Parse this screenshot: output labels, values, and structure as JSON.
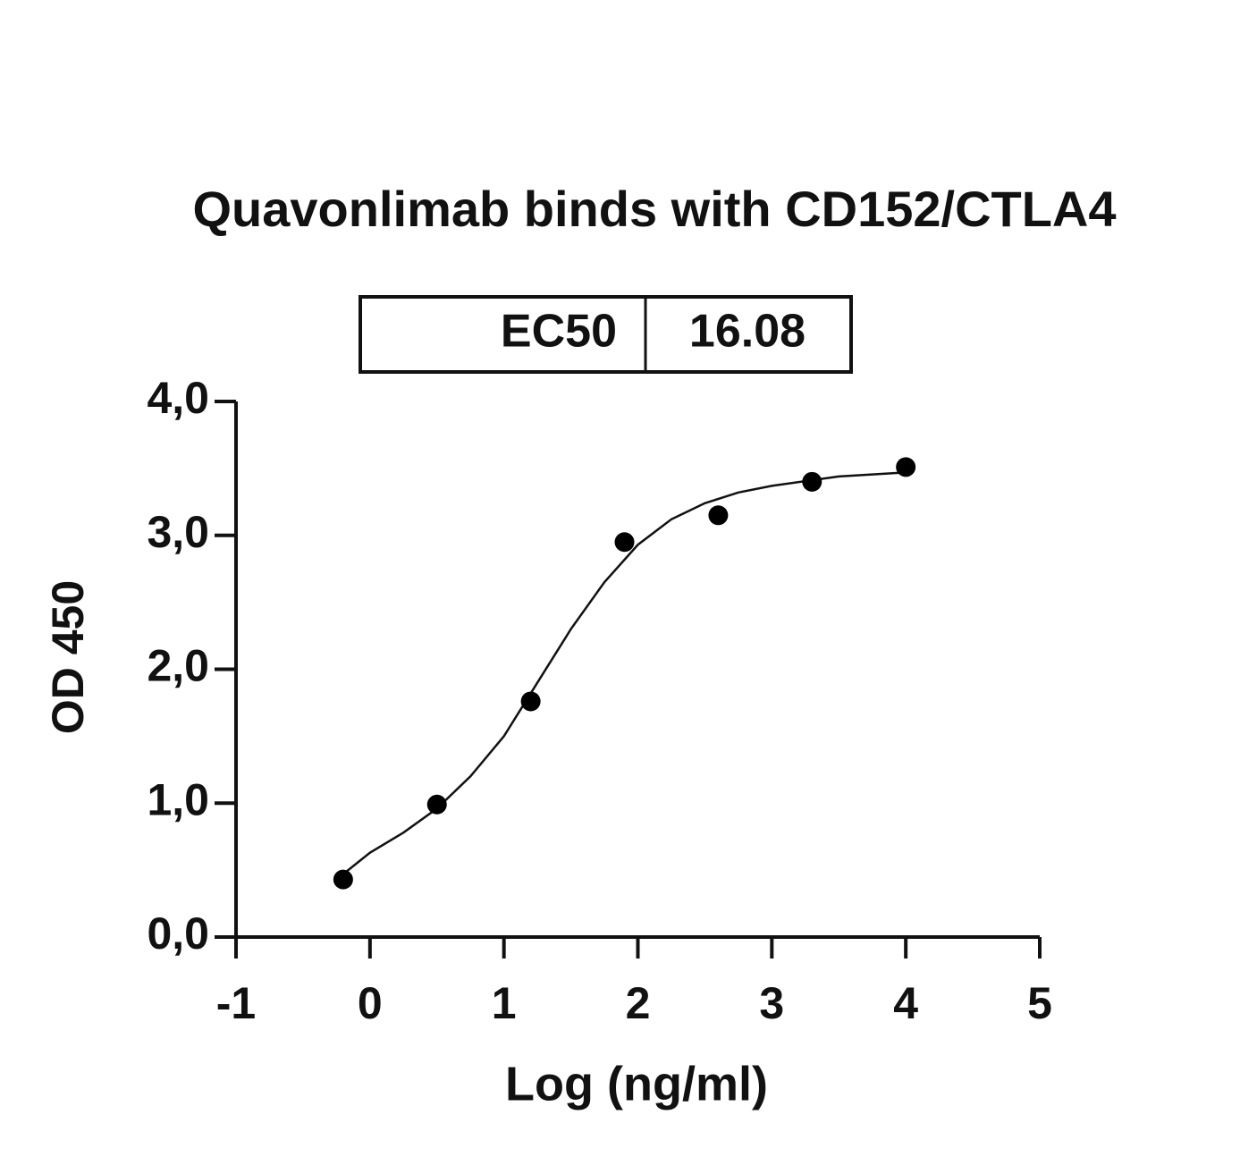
{
  "chart_data": {
    "type": "scatter",
    "title": "Quavonlimab binds with CD152/CTLA4",
    "ec50_table": {
      "label": "EC50",
      "value": 16.08
    },
    "x_label": "Log (ng/ml)",
    "y_label": "OD 450",
    "x": [
      -0.2,
      0.5,
      1.2,
      1.9,
      2.6,
      3.3,
      4.0
    ],
    "values": [
      0.43,
      0.99,
      1.76,
      2.95,
      3.15,
      3.4,
      3.51
    ],
    "color": "#000000",
    "fit": {
      "x": [
        -0.2,
        0,
        0.25,
        0.5,
        0.75,
        1,
        1.25,
        1.5,
        1.75,
        2,
        2.25,
        2.5,
        2.75,
        3,
        3.5,
        4
      ],
      "values": [
        0.47,
        0.63,
        0.78,
        0.96,
        1.2,
        1.5,
        1.9,
        2.3,
        2.65,
        2.93,
        3.12,
        3.24,
        3.32,
        3.37,
        3.44,
        3.47
      ]
    },
    "xlim": [
      -1,
      5
    ],
    "xticks": [
      -1,
      0,
      1,
      2,
      3,
      4,
      5
    ],
    "ylim": [
      0,
      4
    ],
    "yticks": [
      {
        "value": 0,
        "label": "0,0"
      },
      {
        "value": 1,
        "label": "1,0"
      },
      {
        "value": 2,
        "label": "2,0"
      },
      {
        "value": 3,
        "label": "3,0"
      },
      {
        "value": 4,
        "label": "4,0"
      }
    ],
    "grid": false
  }
}
